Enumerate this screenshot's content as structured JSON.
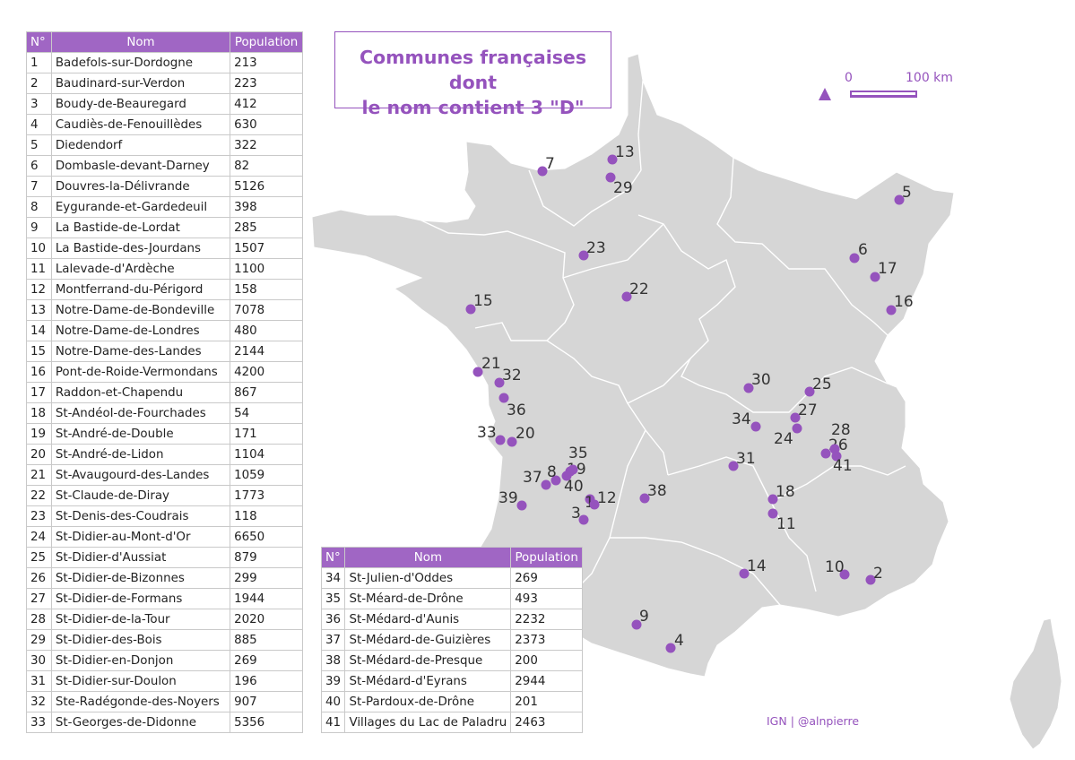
{
  "title": {
    "line1": "Communes françaises dont",
    "line2": "le nom contient 3 \"D\""
  },
  "table_headers": {
    "number": "N°",
    "name": "Nom",
    "population": "Population"
  },
  "scale_bar": {
    "zero_label": "0",
    "end_label": "100 km"
  },
  "credit": "IGN | @alnpierre",
  "colors": {
    "accent": "#9553bd",
    "header": "#a066c4",
    "land": "#d6d6d6",
    "border": "#ffffff"
  },
  "communes": [
    {
      "n": "1",
      "name": "Badefols-sur-Dordogne",
      "pop": "213"
    },
    {
      "n": "2",
      "name": "Baudinard-sur-Verdon",
      "pop": "223"
    },
    {
      "n": "3",
      "name": "Boudy-de-Beauregard",
      "pop": "412"
    },
    {
      "n": "4",
      "name": "Caudiès-de-Fenouillèdes",
      "pop": "630"
    },
    {
      "n": "5",
      "name": "Diedendorf",
      "pop": "322"
    },
    {
      "n": "6",
      "name": "Dombasle-devant-Darney",
      "pop": "82"
    },
    {
      "n": "7",
      "name": "Douvres-la-Délivrande",
      "pop": "5126"
    },
    {
      "n": "8",
      "name": "Eygurande-et-Gardedeuil",
      "pop": "398"
    },
    {
      "n": "9",
      "name": "La Bastide-de-Lordat",
      "pop": "285"
    },
    {
      "n": "10",
      "name": "La Bastide-des-Jourdans",
      "pop": "1507"
    },
    {
      "n": "11",
      "name": "Lalevade-d'Ardèche",
      "pop": "1100"
    },
    {
      "n": "12",
      "name": "Montferrand-du-Périgord",
      "pop": "158"
    },
    {
      "n": "13",
      "name": "Notre-Dame-de-Bondeville",
      "pop": "7078"
    },
    {
      "n": "14",
      "name": "Notre-Dame-de-Londres",
      "pop": "480"
    },
    {
      "n": "15",
      "name": "Notre-Dame-des-Landes",
      "pop": "2144"
    },
    {
      "n": "16",
      "name": "Pont-de-Roide-Vermondans",
      "pop": "4200"
    },
    {
      "n": "17",
      "name": "Raddon-et-Chapendu",
      "pop": "867"
    },
    {
      "n": "18",
      "name": "St-Andéol-de-Fourchades",
      "pop": "54"
    },
    {
      "n": "19",
      "name": "St-André-de-Double",
      "pop": "171"
    },
    {
      "n": "20",
      "name": "St-André-de-Lidon",
      "pop": "1104"
    },
    {
      "n": "21",
      "name": "St-Avaugourd-des-Landes",
      "pop": "1059"
    },
    {
      "n": "22",
      "name": "St-Claude-de-Diray",
      "pop": "1773"
    },
    {
      "n": "23",
      "name": "St-Denis-des-Coudrais",
      "pop": "118"
    },
    {
      "n": "24",
      "name": "St-Didier-au-Mont-d'Or",
      "pop": "6650"
    },
    {
      "n": "25",
      "name": "St-Didier-d'Aussiat",
      "pop": "879"
    },
    {
      "n": "26",
      "name": "St-Didier-de-Bizonnes",
      "pop": "299"
    },
    {
      "n": "27",
      "name": "St-Didier-de-Formans",
      "pop": "1944"
    },
    {
      "n": "28",
      "name": "St-Didier-de-la-Tour",
      "pop": "2020"
    },
    {
      "n": "29",
      "name": "St-Didier-des-Bois",
      "pop": "885"
    },
    {
      "n": "30",
      "name": "St-Didier-en-Donjon",
      "pop": "269"
    },
    {
      "n": "31",
      "name": "St-Didier-sur-Doulon",
      "pop": "196"
    },
    {
      "n": "32",
      "name": "Ste-Radégonde-des-Noyers",
      "pop": "907"
    },
    {
      "n": "33",
      "name": "St-Georges-de-Didonne",
      "pop": "5356"
    },
    {
      "n": "34",
      "name": "St-Julien-d'Oddes",
      "pop": "269"
    },
    {
      "n": "35",
      "name": "St-Méard-de-Drône",
      "pop": "493"
    },
    {
      "n": "36",
      "name": "St-Médard-d'Aunis",
      "pop": "2232"
    },
    {
      "n": "37",
      "name": "St-Médard-de-Guizières",
      "pop": "2373"
    },
    {
      "n": "38",
      "name": "St-Médard-de-Presque",
      "pop": "200"
    },
    {
      "n": "39",
      "name": "St-Médard-d'Eyrans",
      "pop": "2944"
    },
    {
      "n": "40",
      "name": "St-Pardoux-de-Drône",
      "pop": "201"
    },
    {
      "n": "41",
      "name": "Villages du Lac de Paladru",
      "pop": "2463"
    }
  ]
}
